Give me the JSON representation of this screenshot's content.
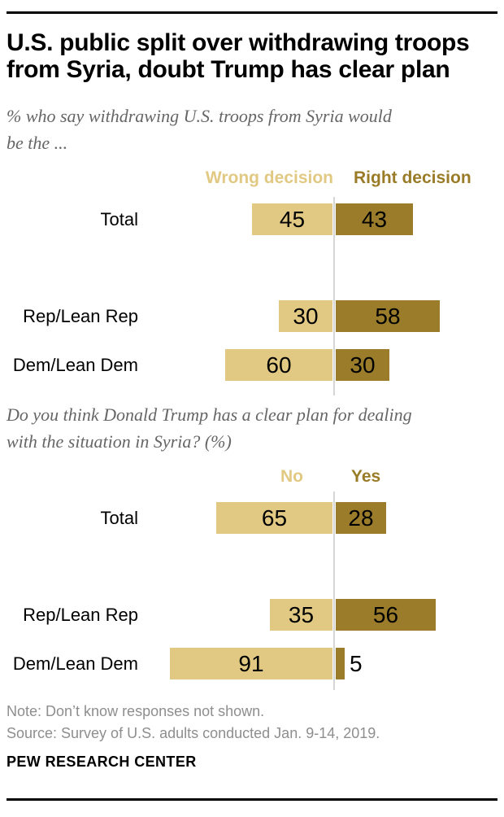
{
  "header": {
    "title": "U.S. public split over withdrawing troops\nfrom Syria, doubt Trump has clear plan"
  },
  "chart_data": [
    {
      "type": "bar",
      "orientation": "horizontal-diverging",
      "question": "% who say withdrawing U.S. troops from Syria would\nbe the ...",
      "left_header": "Wrong decision",
      "right_header": "Right decision",
      "categories": [
        "Total",
        "Rep/Lean Rep",
        "Dem/Lean Dem"
      ],
      "series": [
        {
          "name": "Wrong decision",
          "color": "#E2C983",
          "values": [
            45,
            30,
            60
          ]
        },
        {
          "name": "Right decision",
          "color": "#9A7C2B",
          "values": [
            43,
            58,
            30
          ]
        }
      ],
      "xlim": [
        0,
        100
      ],
      "grid": false,
      "value_labels": "inside-centered"
    },
    {
      "type": "bar",
      "orientation": "horizontal-diverging",
      "question": "Do you think Donald Trump has a clear plan for dealing\nwith the situation in Syria? (%)",
      "left_header": "No",
      "right_header": "Yes",
      "categories": [
        "Total",
        "Rep/Lean Rep",
        "Dem/Lean Dem"
      ],
      "series": [
        {
          "name": "No",
          "color": "#E2C983",
          "values": [
            65,
            35,
            91
          ]
        },
        {
          "name": "Yes",
          "color": "#9A7C2B",
          "values": [
            28,
            56,
            5
          ]
        }
      ],
      "xlim": [
        0,
        100
      ],
      "grid": false,
      "value_labels": "inside-centered; outside when bar too small"
    }
  ],
  "colors": {
    "light_gold": "#E2C983",
    "dark_gold": "#9A7C2B",
    "divider_gray": "#D6D6D6",
    "subtitle_gray": "#666666",
    "footnote_gray": "#8E8E8E"
  },
  "footer": {
    "note": "Note: Don’t know responses not shown.",
    "source": "Source: Survey of U.S. adults conducted Jan. 9-14, 2019.",
    "brand": "PEW RESEARCH CENTER"
  }
}
